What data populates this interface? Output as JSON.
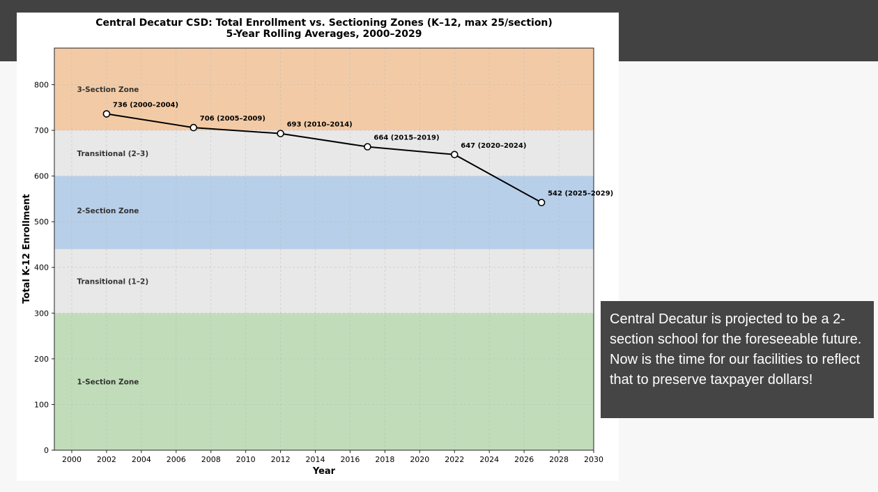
{
  "caption": {
    "text": "Central Decatur is projected to be a 2-section school for the foreseeable future. Now is the time for our facilities to reflect that to preserve taxpayer dollars!"
  },
  "chart_data": {
    "type": "line",
    "title": "Central Decatur CSD: Total Enrollment vs. Sectioning Zones (K–12, max 25/section)",
    "subtitle": "5-Year Rolling Averages, 2000–2029",
    "xlabel": "Year",
    "ylabel": "Total K-12 Enrollment",
    "xlim": [
      1999,
      2030
    ],
    "ylim": [
      0,
      880
    ],
    "xticks": [
      2000,
      2002,
      2004,
      2006,
      2008,
      2010,
      2012,
      2014,
      2016,
      2018,
      2020,
      2022,
      2024,
      2026,
      2028,
      2030
    ],
    "yticks": [
      0,
      100,
      200,
      300,
      400,
      500,
      600,
      700,
      800
    ],
    "grid": true,
    "zones": [
      {
        "label": "1-Section Zone",
        "from": 0,
        "to": 300,
        "color": "#c1dcb9"
      },
      {
        "label": "Transitional (1–2)",
        "from": 300,
        "to": 440,
        "color": "#e8e8e8"
      },
      {
        "label": "2-Section Zone",
        "from": 440,
        "to": 600,
        "color": "#b8cfe9"
      },
      {
        "label": "Transitional (2–3)",
        "from": 600,
        "to": 700,
        "color": "#e8e8e8"
      },
      {
        "label": "3-Section Zone",
        "from": 700,
        "to": 880,
        "color": "#f2cba6"
      }
    ],
    "zone_label_y": [
      150,
      370,
      525,
      650,
      790
    ],
    "series": [
      {
        "x": [
          2002,
          2007,
          2012,
          2017,
          2022,
          2027
        ],
        "y": [
          736,
          706,
          693,
          664,
          647,
          542
        ],
        "labels": [
          "736 (2000–2004)",
          "706 (2005–2009)",
          "693 (2010–2014)",
          "664 (2015–2019)",
          "647 (2020–2024)",
          "542 (2025–2029)"
        ]
      }
    ]
  }
}
